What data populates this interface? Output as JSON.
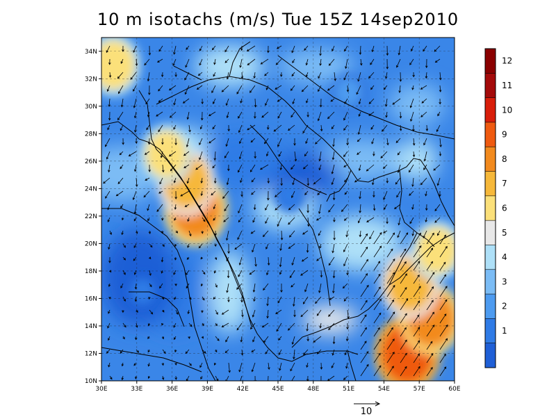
{
  "title": "10 m isotachs (m/s) Tue 15Z 14sep2010",
  "map": {
    "lon_ticks": [
      "30E",
      "33E",
      "36E",
      "39E",
      "42E",
      "45E",
      "48E",
      "51E",
      "54E",
      "57E",
      "60E"
    ],
    "lat_ticks": [
      "10N",
      "12N",
      "14N",
      "16N",
      "18N",
      "20N",
      "22N",
      "24N",
      "26N",
      "28N",
      "30N",
      "32N",
      "34N"
    ],
    "lon_range": [
      30,
      60
    ],
    "lat_range": [
      10,
      35
    ],
    "grid": "dashed",
    "reference_vector": {
      "label": "10",
      "units": "m/s"
    }
  },
  "colorbar": {
    "labels": [
      "1",
      "2",
      "3",
      "4",
      "5",
      "6",
      "7",
      "8",
      "9",
      "10",
      "11",
      "12"
    ],
    "colors": [
      "#1f5fd6",
      "#2f7be6",
      "#4d9bf0",
      "#7bbcf5",
      "#aee0f8",
      "#e8e8e8",
      "#fbe07a",
      "#f6b83a",
      "#f28a1e",
      "#ef5a10",
      "#d81e0a",
      "#a40a0a"
    ]
  },
  "chart_data": {
    "type": "heatmap",
    "title": "10 m isotachs (m/s) Tue 15Z 14sep2010",
    "xlim": [
      30,
      60
    ],
    "ylim": [
      10,
      35
    ],
    "value_range": [
      0,
      13
    ],
    "regions": [
      {
        "lon": 38.0,
        "lat": 22.5,
        "speed": 9.5
      },
      {
        "lon": 37.2,
        "lat": 24.5,
        "speed": 8.5
      },
      {
        "lon": 35.5,
        "lat": 26.5,
        "speed": 7
      },
      {
        "lon": 31.0,
        "lat": 33.0,
        "speed": 7.5
      },
      {
        "lon": 56.0,
        "lat": 12.0,
        "speed": 10
      },
      {
        "lon": 58.0,
        "lat": 14.5,
        "speed": 9
      },
      {
        "lon": 56.2,
        "lat": 17.0,
        "speed": 8.5
      },
      {
        "lon": 58.5,
        "lat": 19.5,
        "speed": 7
      },
      {
        "lon": 33.5,
        "lat": 16.5,
        "speed": 2
      },
      {
        "lon": 46.0,
        "lat": 23.5,
        "speed": 2.5
      },
      {
        "lon": 51.0,
        "lat": 31.0,
        "speed": 3
      }
    ]
  }
}
